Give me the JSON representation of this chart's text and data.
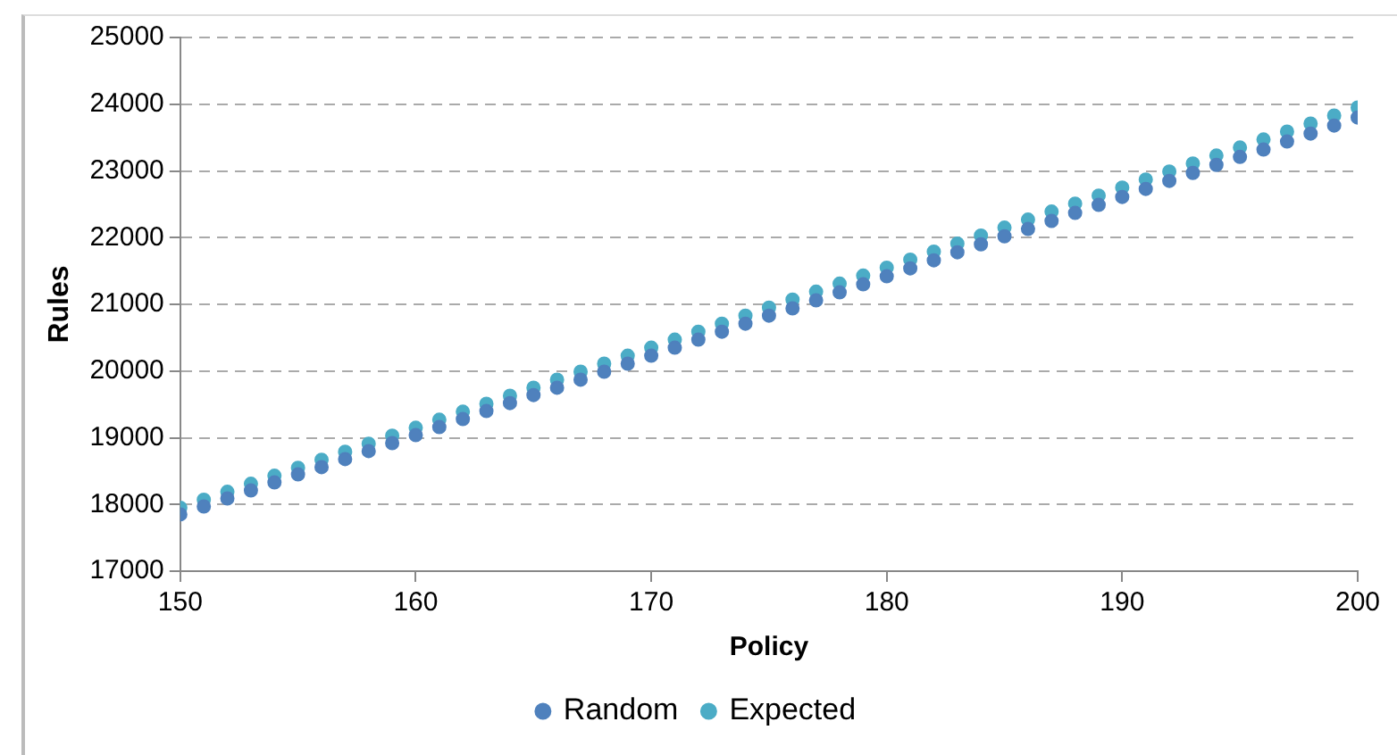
{
  "chart_data": {
    "type": "scatter",
    "xlabel": "Policy",
    "ylabel": "Rules",
    "x": [
      150,
      151,
      152,
      153,
      154,
      155,
      156,
      157,
      158,
      159,
      160,
      161,
      162,
      163,
      164,
      165,
      166,
      167,
      168,
      169,
      170,
      171,
      172,
      173,
      174,
      175,
      176,
      177,
      178,
      179,
      180,
      181,
      182,
      183,
      184,
      185,
      186,
      187,
      188,
      189,
      190,
      191,
      192,
      193,
      194,
      195,
      196,
      197,
      198,
      199,
      200
    ],
    "series": [
      {
        "name": "Random",
        "color": "#4f81bd",
        "values": [
          17850,
          17970,
          18090,
          18210,
          18330,
          18450,
          18560,
          18680,
          18800,
          18920,
          19040,
          19160,
          19280,
          19400,
          19520,
          19640,
          19750,
          19870,
          19990,
          20110,
          20230,
          20350,
          20470,
          20590,
          20710,
          20830,
          20940,
          21060,
          21180,
          21300,
          21420,
          21540,
          21660,
          21780,
          21900,
          22020,
          22130,
          22250,
          22370,
          22490,
          22610,
          22730,
          22850,
          22970,
          23090,
          23210,
          23320,
          23440,
          23560,
          23680,
          23800
        ]
      },
      {
        "name": "Expected",
        "color": "#4bacc6",
        "values": [
          17950,
          18070,
          18190,
          18310,
          18430,
          18550,
          18670,
          18790,
          18910,
          19030,
          19150,
          19270,
          19390,
          19510,
          19630,
          19750,
          19870,
          19990,
          20110,
          20230,
          20350,
          20470,
          20590,
          20710,
          20830,
          20950,
          21070,
          21190,
          21310,
          21430,
          21550,
          21670,
          21790,
          21910,
          22030,
          22150,
          22270,
          22390,
          22510,
          22630,
          22750,
          22870,
          22990,
          23110,
          23230,
          23350,
          23470,
          23590,
          23710,
          23830,
          23950
        ]
      }
    ],
    "xlim": [
      150,
      200
    ],
    "xticks": [
      150,
      160,
      170,
      180,
      190,
      200
    ],
    "ylim": [
      17000,
      25000
    ],
    "yticks": [
      17000,
      18000,
      19000,
      20000,
      21000,
      22000,
      23000,
      24000,
      25000
    ],
    "grid": "y",
    "legend": "bottom",
    "marker": "circle"
  }
}
